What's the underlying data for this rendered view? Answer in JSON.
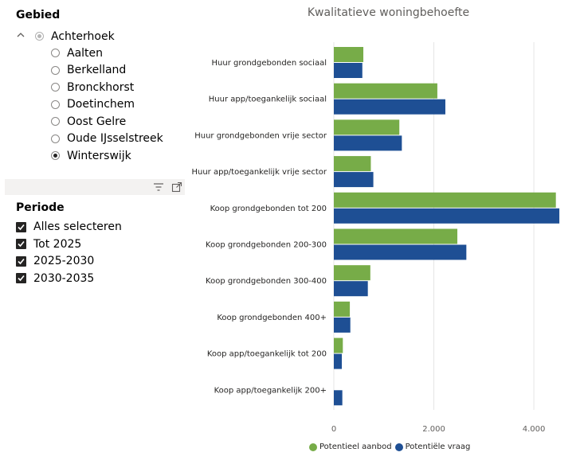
{
  "gebied": {
    "title": "Gebied",
    "root": "Achterhoek",
    "items": [
      "Aalten",
      "Berkelland",
      "Bronckhorst",
      "Doetinchem",
      "Oost Gelre",
      "Oude IJsselstreek",
      "Winterswijk"
    ],
    "selected": "Winterswijk"
  },
  "periode": {
    "title": "Periode",
    "items": [
      "Alles selecteren",
      "Tot 2025",
      "2025-2030",
      "2030-2035"
    ]
  },
  "toolbar": {
    "icons": [
      "filter-icon",
      "focus-mode-icon"
    ]
  },
  "chart_data": {
    "type": "bar",
    "orientation": "horizontal",
    "title": "Kwalitatieve woningbehoefte",
    "categories": [
      "Huur grondgebonden sociaal",
      "Huur app/toegankelijk sociaal",
      "Huur grondgebonden vrije sector",
      "Huur app/toegankelijk vrije sector",
      "Koop grondgebonden tot 200",
      "Koop grondgebonden 200-300",
      "Koop grondgebonden 300-400",
      "Koop grondgebonden 400+",
      "Koop app/toegankelijk tot 200",
      "Koop app/toegankelijk 200+"
    ],
    "series": [
      {
        "name": "Potentieel aanbod",
        "color": "#77ac48",
        "values": [
          590,
          2070,
          1310,
          740,
          4440,
          2470,
          730,
          320,
          180,
          0
        ]
      },
      {
        "name": "Potentiële vraag",
        "color": "#1e4f94",
        "values": [
          570,
          2230,
          1360,
          790,
          4510,
          2650,
          680,
          330,
          160,
          170
        ]
      }
    ],
    "xlim": [
      0,
      4700
    ],
    "ticks": [
      "0",
      "2.000",
      "4.000"
    ],
    "tick_values": [
      0,
      2000,
      4000
    ],
    "grid": true,
    "legend_position": "bottom"
  }
}
